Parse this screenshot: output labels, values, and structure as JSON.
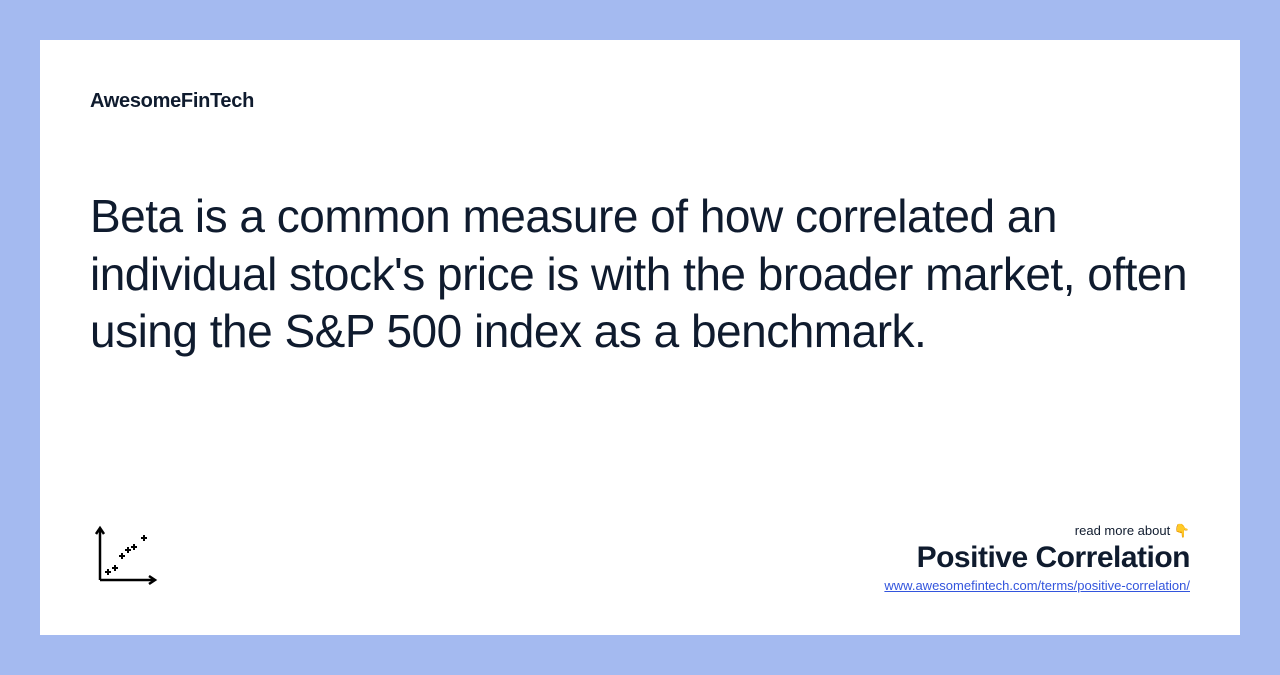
{
  "colors": {
    "page_bg": "#a4baf0",
    "card_bg": "#ffffff",
    "text_primary": "#0f1b2e",
    "link": "#3355dd",
    "icon_stroke": "#000000"
  },
  "brand": "AwesomeFinTech",
  "main_text": "Beta is a common measure of how correlated an individual stock's price is with the broader market, often using the S&P 500 index as a benchmark.",
  "footer": {
    "read_more": "read more about 👇",
    "term_title": "Positive Correlation",
    "url": "www.awesomefintech.com/terms/positive-correlation/"
  },
  "icon": {
    "name": "scatter-plot-icon",
    "points": [
      {
        "x": 18,
        "y": 52
      },
      {
        "x": 25,
        "y": 48
      },
      {
        "x": 32,
        "y": 36
      },
      {
        "x": 38,
        "y": 30
      },
      {
        "x": 44,
        "y": 27
      },
      {
        "x": 54,
        "y": 18
      }
    ]
  }
}
